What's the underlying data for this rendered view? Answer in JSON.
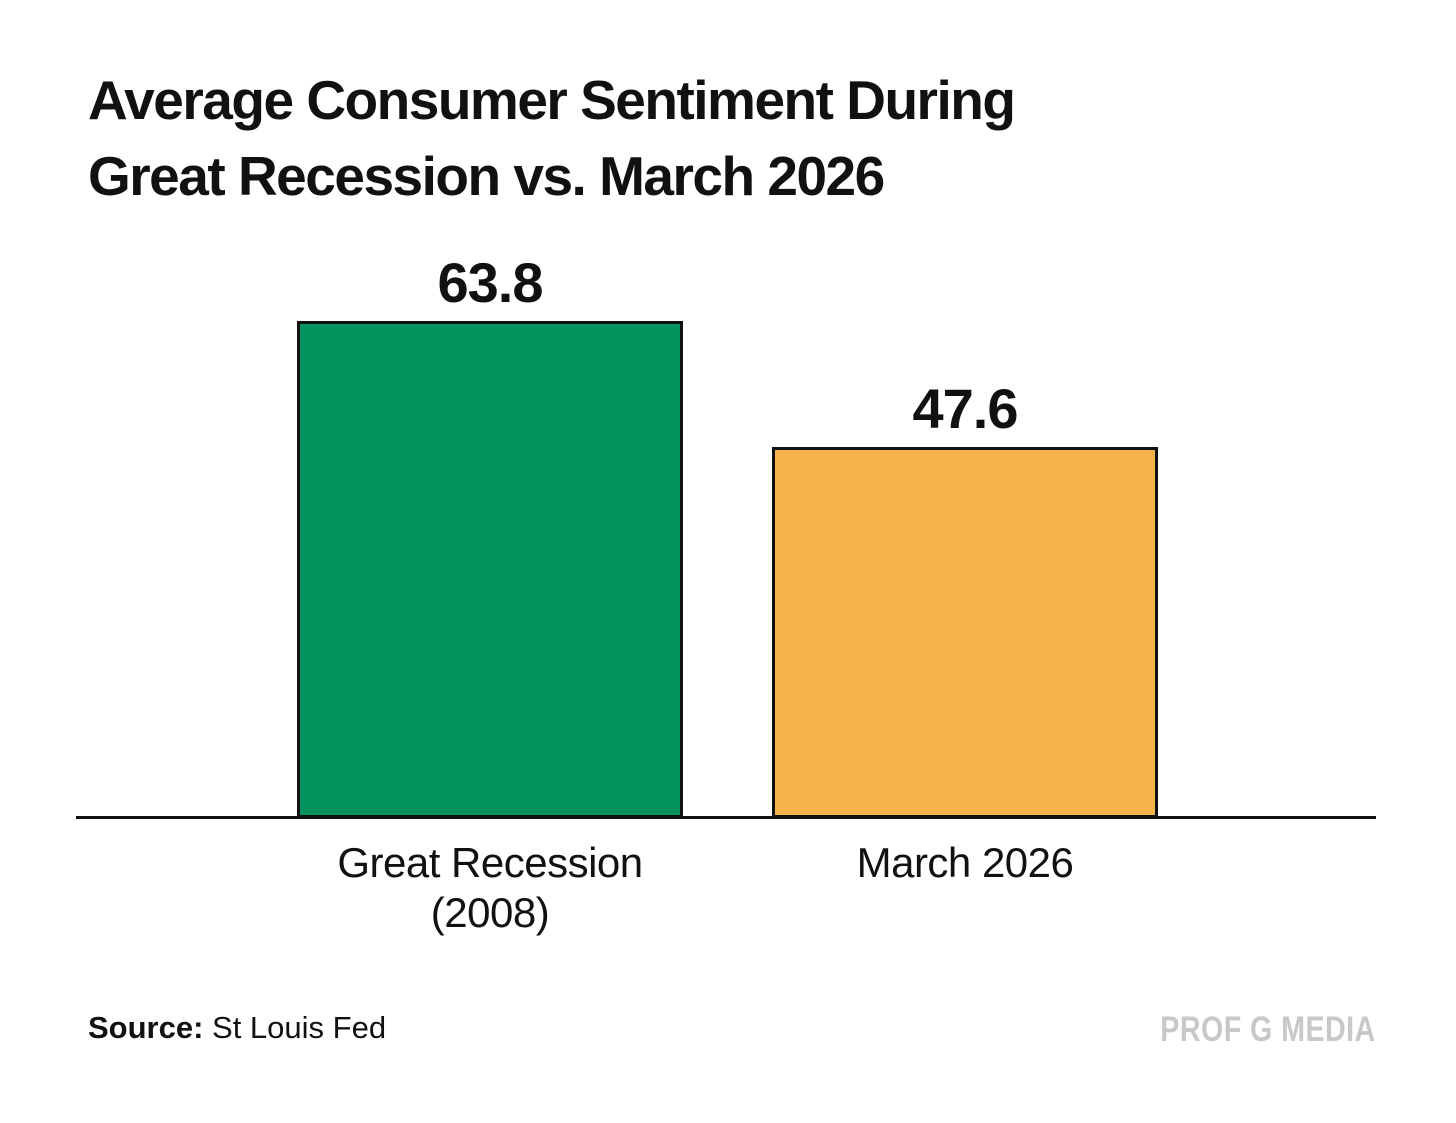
{
  "chart_data": {
    "type": "bar",
    "title": "Average Consumer Sentiment During Great Recession vs. March 2026",
    "title_lines": [
      "Average Consumer Sentiment During",
      "Great Recession vs. March 2026"
    ],
    "categories": [
      "Great Recession\n(2008)",
      "March 2026"
    ],
    "values": [
      63.8,
      47.6
    ],
    "value_labels": [
      "63.8",
      "47.6"
    ],
    "colors": [
      "#04925E",
      "#F4B44A"
    ],
    "bar_border_color": "#111111",
    "axis_line_color": "#111111",
    "xlabel": "",
    "ylabel": "",
    "ylim": [
      0,
      63.8
    ],
    "grid": false,
    "legend": false
  },
  "footer": {
    "source_label": "Source:",
    "source_value": " St Louis Fed",
    "watermark": "PROF G MEDIA",
    "watermark_color": "#c8c8c8"
  }
}
